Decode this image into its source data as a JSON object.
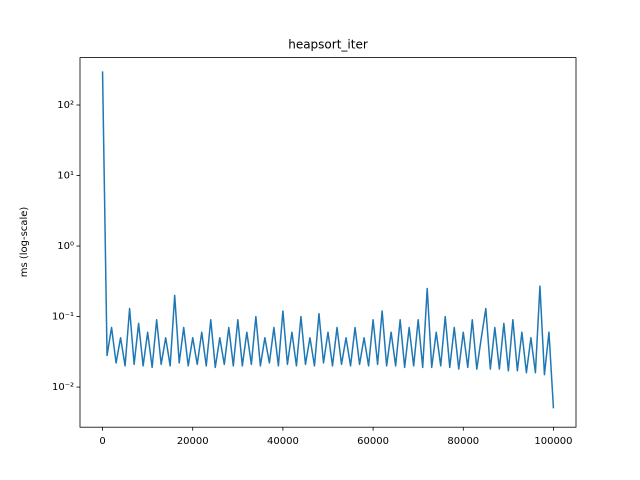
{
  "chart_data": {
    "type": "line",
    "title": "heapsort_iter",
    "ylabel": "ms (log-scale)",
    "yscale": "log",
    "color": "#1f77b4",
    "xlim": [
      -5000,
      105000
    ],
    "ylim": [
      0.0027,
      470
    ],
    "xticks": [
      0,
      20000,
      40000,
      60000,
      80000,
      100000
    ],
    "yticks": [
      {
        "value": 0.01,
        "label": "10⁻²"
      },
      {
        "value": 0.1,
        "label": "10⁻¹"
      },
      {
        "value": 1,
        "label": "10⁰"
      },
      {
        "value": 10,
        "label": "10¹"
      },
      {
        "value": 100,
        "label": "10²"
      }
    ],
    "x": [
      0,
      1000,
      2000,
      3000,
      4000,
      5000,
      6000,
      7000,
      8000,
      9000,
      10000,
      11000,
      12000,
      13000,
      14000,
      15000,
      16000,
      17000,
      18000,
      19000,
      20000,
      21000,
      22000,
      23000,
      24000,
      25000,
      26000,
      27000,
      28000,
      29000,
      30000,
      31000,
      32000,
      33000,
      34000,
      35000,
      36000,
      37000,
      38000,
      39000,
      40000,
      41000,
      42000,
      43000,
      44000,
      45000,
      46000,
      47000,
      48000,
      49000,
      50000,
      51000,
      52000,
      53000,
      54000,
      55000,
      56000,
      57000,
      58000,
      59000,
      60000,
      61000,
      62000,
      63000,
      64000,
      65000,
      66000,
      67000,
      68000,
      69000,
      70000,
      71000,
      72000,
      73000,
      74000,
      75000,
      76000,
      77000,
      78000,
      79000,
      80000,
      81000,
      82000,
      83000,
      84000,
      85000,
      86000,
      87000,
      88000,
      89000,
      90000,
      91000,
      92000,
      93000,
      94000,
      95000,
      96000,
      97000,
      98000,
      99000,
      99999
    ],
    "values": [
      300,
      0.028,
      0.07,
      0.022,
      0.05,
      0.02,
      0.13,
      0.021,
      0.08,
      0.02,
      0.06,
      0.019,
      0.09,
      0.021,
      0.05,
      0.02,
      0.2,
      0.022,
      0.07,
      0.02,
      0.05,
      0.021,
      0.06,
      0.02,
      0.09,
      0.019,
      0.05,
      0.021,
      0.07,
      0.02,
      0.09,
      0.02,
      0.06,
      0.021,
      0.1,
      0.02,
      0.05,
      0.022,
      0.07,
      0.02,
      0.12,
      0.021,
      0.06,
      0.02,
      0.1,
      0.021,
      0.05,
      0.02,
      0.11,
      0.022,
      0.06,
      0.02,
      0.07,
      0.021,
      0.05,
      0.02,
      0.07,
      0.021,
      0.05,
      0.02,
      0.09,
      0.021,
      0.12,
      0.02,
      0.06,
      0.02,
      0.09,
      0.019,
      0.07,
      0.02,
      0.09,
      0.019,
      0.25,
      0.019,
      0.06,
      0.02,
      0.1,
      0.019,
      0.07,
      0.018,
      0.06,
      0.019,
      0.09,
      0.018,
      0.05,
      0.13,
      0.018,
      0.07,
      0.018,
      0.08,
      0.017,
      0.09,
      0.017,
      0.06,
      0.016,
      0.05,
      0.016,
      0.27,
      0.015,
      0.06,
      0.005
    ]
  }
}
